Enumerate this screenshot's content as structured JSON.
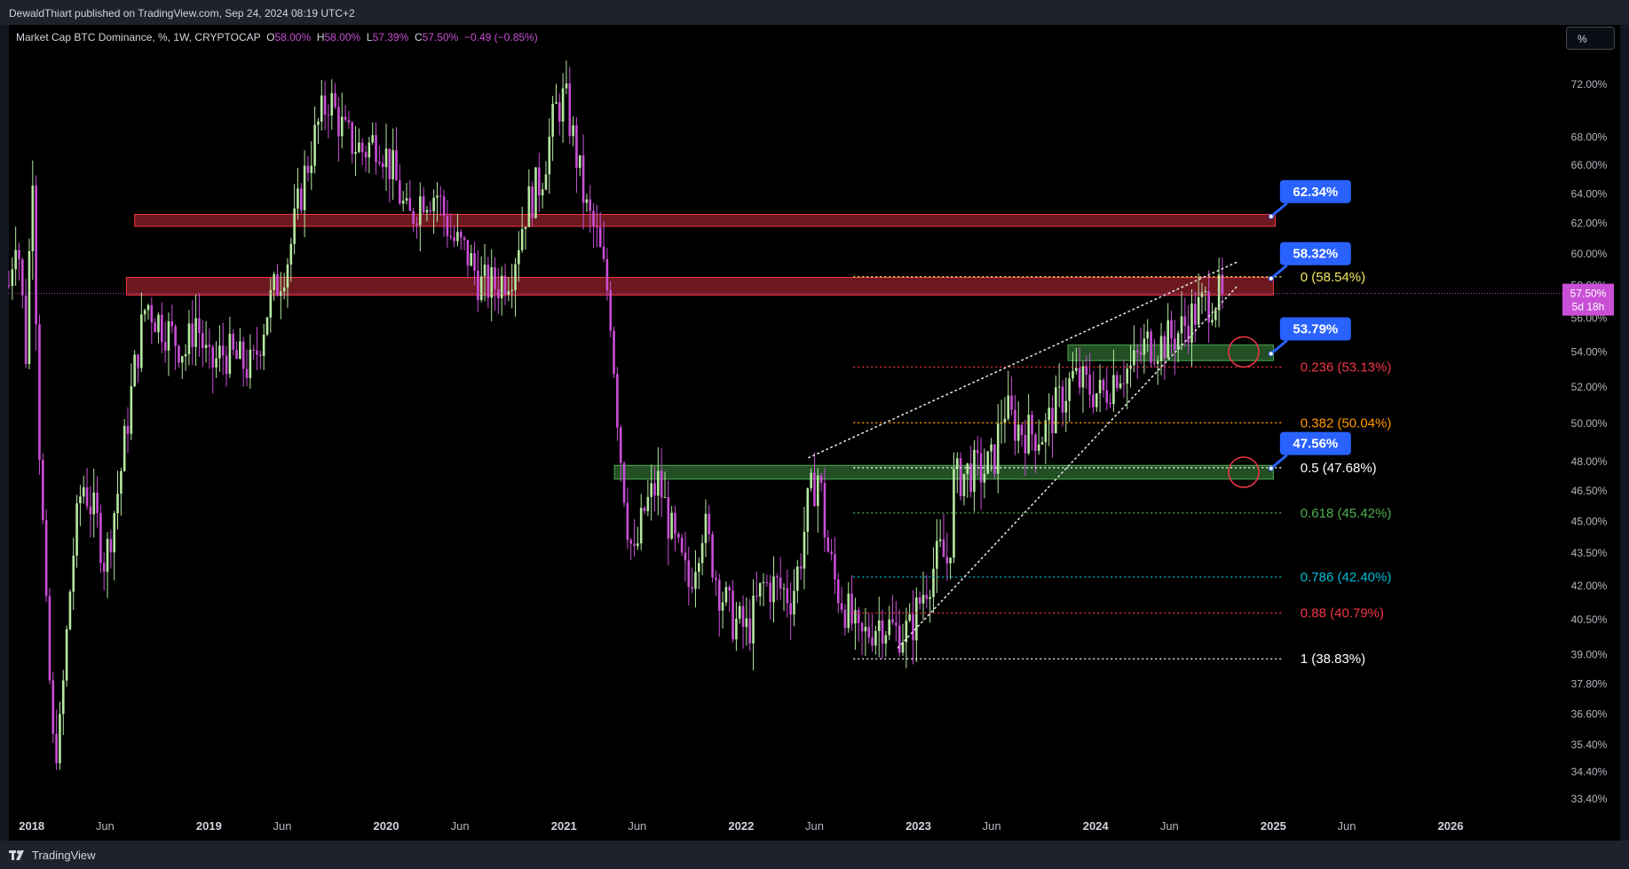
{
  "header": {
    "published": "DewaldThiart published on TradingView.com, Sep 24, 2024 08:19 UTC+2"
  },
  "legend": {
    "symbol": "Market Cap BTC Dominance, %, 1W, CRYPTOCAP",
    "o_label": "O",
    "o_value": "58.00%",
    "h_label": "H",
    "h_value": "58.00%",
    "l_label": "L",
    "l_value": "57.39%",
    "c_label": "C",
    "c_value": "57.50%",
    "change": "−0.49 (−0.85%)"
  },
  "toolbar": {
    "percent_label": "%"
  },
  "footer": {
    "brand": "TradingView"
  },
  "colors": {
    "up": "#b5e8a0",
    "down": "#c94fd6",
    "zone_red": "#f23645",
    "zone_green": "#4caf50",
    "callout": "#2962ff"
  },
  "chart_data": {
    "type": "candlestick",
    "y_scale": "log",
    "ylim": [
      32.9,
      75.0
    ],
    "xlim": [
      "2017-11-15",
      "2026-08-01"
    ],
    "y_ticks": [
      "72.00%",
      "68.00%",
      "66.00%",
      "64.00%",
      "62.00%",
      "60.00%",
      "58.00%",
      "56.00%",
      "54.00%",
      "52.00%",
      "50.00%",
      "48.00%",
      "46.50%",
      "45.00%",
      "43.50%",
      "42.00%",
      "40.50%",
      "39.00%",
      "37.80%",
      "36.60%",
      "35.40%",
      "34.40%",
      "33.40%"
    ],
    "x_ticks": [
      {
        "label": "2018",
        "date": "2018-01-01",
        "bold": true
      },
      {
        "label": "Jun",
        "date": "2018-06-01",
        "bold": false
      },
      {
        "label": "2019",
        "date": "2019-01-01",
        "bold": true
      },
      {
        "label": "Jun",
        "date": "2019-06-01",
        "bold": false
      },
      {
        "label": "2020",
        "date": "2020-01-01",
        "bold": true
      },
      {
        "label": "Jun",
        "date": "2020-06-01",
        "bold": false
      },
      {
        "label": "2021",
        "date": "2021-01-01",
        "bold": true
      },
      {
        "label": "Jun",
        "date": "2021-06-01",
        "bold": false
      },
      {
        "label": "2022",
        "date": "2022-01-01",
        "bold": true
      },
      {
        "label": "Jun",
        "date": "2022-06-01",
        "bold": false
      },
      {
        "label": "2023",
        "date": "2023-01-01",
        "bold": true
      },
      {
        "label": "Jun",
        "date": "2023-06-01",
        "bold": false
      },
      {
        "label": "2024",
        "date": "2024-01-01",
        "bold": true
      },
      {
        "label": "Jun",
        "date": "2024-06-01",
        "bold": false
      },
      {
        "label": "2025",
        "date": "2025-01-01",
        "bold": true
      },
      {
        "label": "Jun",
        "date": "2025-06-01",
        "bold": false
      },
      {
        "label": "2026",
        "date": "2026-01-01",
        "bold": true
      }
    ],
    "price_path": [
      [
        "2017-11-15",
        58.0
      ],
      [
        "2017-12-01",
        62.0
      ],
      [
        "2017-12-20",
        54.0
      ],
      [
        "2018-01-03",
        66.0
      ],
      [
        "2018-01-15",
        50.0
      ],
      [
        "2018-02-01",
        40.0
      ],
      [
        "2018-02-15",
        35.0
      ],
      [
        "2018-03-01",
        36.0
      ],
      [
        "2018-03-25",
        43.0
      ],
      [
        "2018-04-15",
        47.0
      ],
      [
        "2018-05-15",
        45.0
      ],
      [
        "2018-06-01",
        43.0
      ],
      [
        "2018-07-01",
        47.0
      ],
      [
        "2018-08-01",
        53.0
      ],
      [
        "2018-08-25",
        57.0
      ],
      [
        "2018-09-15",
        56.0
      ],
      [
        "2018-10-15",
        55.0
      ],
      [
        "2018-11-15",
        54.0
      ],
      [
        "2018-12-05",
        56.0
      ],
      [
        "2019-01-01",
        53.0
      ],
      [
        "2019-02-01",
        54.0
      ],
      [
        "2019-03-01",
        53.5
      ],
      [
        "2019-04-01",
        53.0
      ],
      [
        "2019-05-01",
        56.5
      ],
      [
        "2019-06-15",
        60.0
      ],
      [
        "2019-07-15",
        65.0
      ],
      [
        "2019-08-15",
        69.0
      ],
      [
        "2019-09-05",
        71.0
      ],
      [
        "2019-10-10",
        68.0
      ],
      [
        "2019-11-15",
        67.0
      ],
      [
        "2019-12-15",
        68.0
      ],
      [
        "2020-01-15",
        65.5
      ],
      [
        "2020-02-15",
        62.0
      ],
      [
        "2020-03-15",
        64.0
      ],
      [
        "2020-04-15",
        64.0
      ],
      [
        "2020-05-15",
        61.0
      ],
      [
        "2020-06-15",
        60.0
      ],
      [
        "2020-07-15",
        58.0
      ],
      [
        "2020-08-15",
        58.0
      ],
      [
        "2020-09-15",
        59.0
      ],
      [
        "2020-10-15",
        63.0
      ],
      [
        "2020-11-15",
        65.0
      ],
      [
        "2020-12-15",
        70.0
      ],
      [
        "2021-01-03",
        71.0
      ],
      [
        "2021-01-25",
        67.0
      ],
      [
        "2021-02-15",
        63.0
      ],
      [
        "2021-03-10",
        61.0
      ],
      [
        "2021-04-05",
        57.0
      ],
      [
        "2021-04-25",
        49.0
      ],
      [
        "2021-05-12",
        45.0
      ],
      [
        "2021-05-25",
        43.0
      ],
      [
        "2021-06-15",
        45.5
      ],
      [
        "2021-07-15",
        47.0
      ],
      [
        "2021-08-15",
        44.0
      ],
      [
        "2021-09-15",
        42.0
      ],
      [
        "2021-10-15",
        45.0
      ],
      [
        "2021-11-15",
        42.0
      ],
      [
        "2021-12-15",
        40.5
      ],
      [
        "2022-01-15",
        40.0
      ],
      [
        "2022-02-15",
        42.0
      ],
      [
        "2022-03-15",
        42.0
      ],
      [
        "2022-04-15",
        41.5
      ],
      [
        "2022-05-01",
        43.0
      ],
      [
        "2022-05-20",
        46.0
      ],
      [
        "2022-06-10",
        47.5
      ],
      [
        "2022-06-25",
        44.0
      ],
      [
        "2022-07-15",
        42.0
      ],
      [
        "2022-08-15",
        40.5
      ],
      [
        "2022-09-01",
        39.5
      ],
      [
        "2022-09-20",
        40.0
      ],
      [
        "2022-10-15",
        40.5
      ],
      [
        "2022-11-15",
        40.0
      ],
      [
        "2022-12-15",
        40.0
      ],
      [
        "2023-01-15",
        42.0
      ],
      [
        "2023-02-15",
        43.5
      ],
      [
        "2023-03-05",
        43.0
      ],
      [
        "2023-03-15",
        47.0
      ],
      [
        "2023-04-15",
        47.5
      ],
      [
        "2023-05-15",
        47.5
      ],
      [
        "2023-06-05",
        48.0
      ],
      [
        "2023-06-25",
        51.0
      ],
      [
        "2023-07-15",
        50.0
      ],
      [
        "2023-08-15",
        49.5
      ],
      [
        "2023-09-15",
        49.5
      ],
      [
        "2023-10-15",
        51.0
      ],
      [
        "2023-11-15",
        52.5
      ],
      [
        "2023-12-15",
        52.0
      ],
      [
        "2024-01-15",
        51.5
      ],
      [
        "2024-02-15",
        53.0
      ],
      [
        "2024-03-15",
        53.0
      ],
      [
        "2024-04-15",
        54.5
      ],
      [
        "2024-05-15",
        54.5
      ],
      [
        "2024-06-15",
        55.0
      ],
      [
        "2024-07-15",
        56.0
      ],
      [
        "2024-08-15",
        57.0
      ],
      [
        "2024-09-24",
        57.5
      ]
    ],
    "zones": [
      {
        "color": "red",
        "x0": "2018-08-01",
        "x1": "2025-01-05",
        "y0": 61.8,
        "y1": 62.6
      },
      {
        "color": "red",
        "x0": "2018-07-15",
        "x1": "2025-01-01",
        "y0": 57.4,
        "y1": 58.5
      },
      {
        "color": "green",
        "x0": "2023-11-05",
        "x1": "2025-01-01",
        "y0": 53.5,
        "y1": 54.4
      },
      {
        "color": "green",
        "x0": "2021-04-15",
        "x1": "2025-01-01",
        "y0": 47.1,
        "y1": 47.8
      }
    ],
    "fib_levels": [
      {
        "label": "0 (58.54%)",
        "value": 58.54,
        "color": "#f5e663"
      },
      {
        "label": "0.236 (53.13%)",
        "value": 53.13,
        "color": "#f23645"
      },
      {
        "label": "0.382 (50.04%)",
        "value": 50.04,
        "color": "#ff9800"
      },
      {
        "label": "0.5 (47.68%)",
        "value": 47.68,
        "color": "#ffffff"
      },
      {
        "label": "0.618 (45.42%)",
        "value": 45.42,
        "color": "#4caf50"
      },
      {
        "label": "0.786 (42.40%)",
        "value": 42.4,
        "color": "#00bcd4"
      },
      {
        "label": "0.88 (40.79%)",
        "value": 40.79,
        "color": "#f23645"
      },
      {
        "label": "1 (38.83%)",
        "value": 38.83,
        "color": "#ffffff"
      }
    ],
    "fib_x0": "2022-08-20",
    "fib_x1": "2025-01-20",
    "wedge_lines": [
      {
        "x0": "2022-05-20",
        "y0": 48.2,
        "x1": "2024-10-20",
        "y1": 59.5
      },
      {
        "x0": "2022-11-20",
        "y0": 39.3,
        "x1": "2024-10-20",
        "y1": 58.0
      }
    ],
    "callouts": [
      {
        "label": "62.34%",
        "x": "2024-12-20",
        "y": 62.34
      },
      {
        "label": "58.32%",
        "x": "2024-12-20",
        "y": 58.32
      },
      {
        "label": "53.79%",
        "x": "2024-12-20",
        "y": 53.79
      },
      {
        "label": "47.56%",
        "x": "2024-12-20",
        "y": 47.56
      }
    ],
    "circles": [
      {
        "x": "2024-11-01",
        "y": 54.0
      },
      {
        "x": "2024-11-01",
        "y": 47.45
      }
    ],
    "current": {
      "value": 57.5,
      "label": "57.50%",
      "countdown": "5d 18h"
    }
  }
}
